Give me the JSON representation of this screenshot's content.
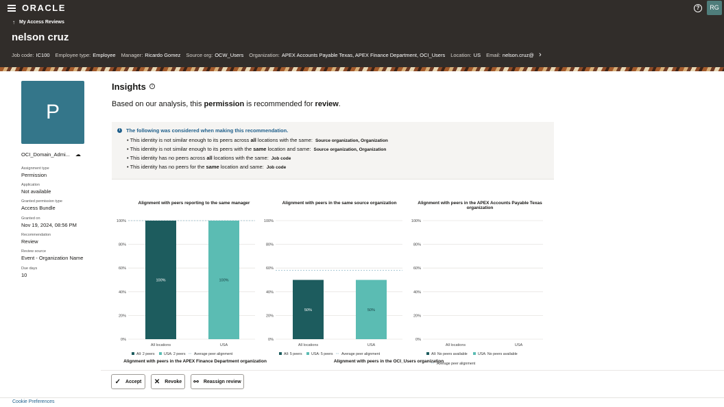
{
  "header": {
    "logo": "ORACLE",
    "help_icon": "help-icon",
    "user_initials": "RG",
    "back_label": "My Access Reviews",
    "identity_name": "nelson cruz",
    "meta": [
      {
        "key": "Job code:",
        "value": "IC100"
      },
      {
        "key": "Employee type:",
        "value": "Employee"
      },
      {
        "key": "Manager:",
        "value": "Ricardo Gomez"
      },
      {
        "key": "Source org:",
        "value": "OCW_Users"
      },
      {
        "key": "Organization:",
        "value": "APEX Accounts Payable Texas, APEX Finance Department, OCI_Users"
      },
      {
        "key": "Location:",
        "value": "US"
      },
      {
        "key": "Email:",
        "value": "nelson.cruz@"
      }
    ]
  },
  "sidebar": {
    "tile_letter": "P",
    "app_name": "OCI_Domain_Admi...",
    "fields": [
      {
        "label": "Assignment type",
        "value": "Permission"
      },
      {
        "label": "Application",
        "value": "Not available"
      },
      {
        "label": "Granted permission type",
        "value": "Access Bundle"
      },
      {
        "label": "Granted on",
        "value": "Nov 19, 2024, 08:56 PM"
      },
      {
        "label": "Recommendation",
        "value": "Review"
      },
      {
        "label": "Review source",
        "value": "Event - Organization Name"
      },
      {
        "label": "Due days",
        "value": "10"
      }
    ]
  },
  "insights": {
    "title": "Insights",
    "summary_pre": "Based on our analysis, this ",
    "summary_b1": "permission",
    "summary_mid": " is recommended for ",
    "summary_b2": "review",
    "summary_end": ".",
    "considered_title": "The following was considered when making this recommendation.",
    "bullets": [
      {
        "a": "This identity is not similar enough to its peers across ",
        "b": "all",
        "c": " locations with the same:",
        "s": "Source organization, Organization"
      },
      {
        "a": "This identity is not similar enough to its peers with the ",
        "b": "same",
        "c": " location and same:",
        "s": "Source organization, Organization"
      },
      {
        "a": "This identity has no peers across ",
        "b": "all",
        "c": " locations with the same:",
        "s": "Job code"
      },
      {
        "a": "This identity has no peers for the ",
        "b": "same",
        "c": " location and same:",
        "s": "Job code"
      }
    ]
  },
  "chart_data": [
    {
      "type": "bar",
      "title": "Alignment with peers reporting to the same manager",
      "categories": [
        "All locations",
        "USA"
      ],
      "values": [
        100,
        100
      ],
      "value_labels": [
        "100%",
        "100%"
      ],
      "ylim": [
        0,
        100
      ],
      "yticks": [
        "0%",
        "20%",
        "40%",
        "60%",
        "80%",
        "100%"
      ],
      "average_peer_alignment": 100,
      "legend": [
        "All: 2 peers",
        "USA: 2 peers",
        "Average peer alignment"
      ],
      "colors": [
        "#1d5c5e",
        "#5bbcb3"
      ]
    },
    {
      "type": "bar",
      "title": "Alignment with peers in the same source organization",
      "categories": [
        "All locations",
        "USA"
      ],
      "values": [
        50,
        50
      ],
      "value_labels": [
        "50%",
        "50%"
      ],
      "ylim": [
        0,
        100
      ],
      "yticks": [
        "0%",
        "20%",
        "40%",
        "60%",
        "80%",
        "100%"
      ],
      "average_peer_alignment": 58,
      "legend": [
        "All: 5 peers",
        "USA: 5 peers",
        "Average peer alignment"
      ],
      "colors": [
        "#1d5c5e",
        "#5bbcb3"
      ]
    },
    {
      "type": "bar",
      "title": "Alignment with peers in the APEX Accounts Payable Texas organization",
      "categories": [
        "All locations",
        "USA"
      ],
      "values": [
        null,
        null
      ],
      "value_labels": [
        "",
        ""
      ],
      "ylim": [
        0,
        100
      ],
      "yticks": [
        "0%",
        "20%",
        "40%",
        "60%",
        "80%",
        "100%"
      ],
      "average_peer_alignment": null,
      "legend": [
        "All: No peers available",
        "USA: No peers available",
        "Average peer alignment"
      ],
      "colors": [
        "#1d5c5e",
        "#5bbcb3"
      ]
    }
  ],
  "lower_chart_titles": [
    "Alignment with peers in the APEX Finance Department organization",
    "Alignment with peers in the OCI_Users organization"
  ],
  "actions": {
    "accept": "Accept",
    "revoke": "Revoke",
    "reassign": "Reassign review"
  },
  "footer": {
    "cookie": "Cookie Preferences"
  }
}
